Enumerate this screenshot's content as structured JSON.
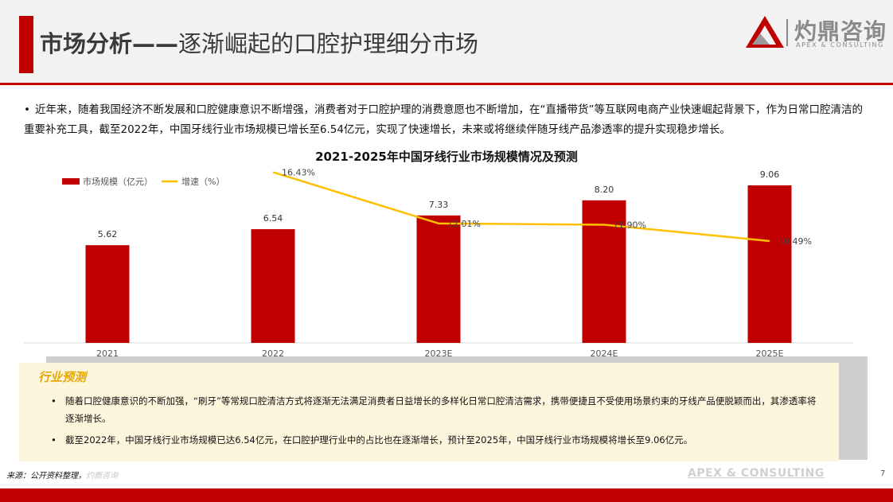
{
  "header": {
    "title_bold": "市场分析——",
    "title_rest": "逐渐崛起的口腔护理细分市场",
    "logo_cn": "灼鼎咨询",
    "logo_en": "APEX & CONSULTING"
  },
  "intro": {
    "bullet": "•",
    "text": "近年来，随着我国经济不断发展和口腔健康意识不断增强，消费者对于口腔护理的消费意愿也不断增加，在“直播带货”等互联网电商产业快速崛起背景下，作为日常口腔清洁的重要补充工具，截至2022年，中国牙线行业市场规模已增长至6.54亿元，实现了快速增长，未来或将继续伴随牙线产品渗透率的提升实现稳步增长。"
  },
  "chart_data": {
    "type": "bar",
    "title": "2021-2025年中国牙线行业市场规模情况及预测",
    "categories": [
      "2021",
      "2022",
      "2023E",
      "2024E",
      "2025E"
    ],
    "series": [
      {
        "name": "市场规模（亿元）",
        "type": "bar",
        "values": [
          5.62,
          6.54,
          7.33,
          8.2,
          9.06
        ],
        "labels": [
          "5.62",
          "6.54",
          "7.33",
          "8.20",
          "9.06"
        ],
        "color": "#c00000"
      },
      {
        "name": "增速（%）",
        "type": "line",
        "values": [
          null,
          16.43,
          12.01,
          11.9,
          10.49
        ],
        "labels": [
          "",
          "16.43%",
          "12.01%",
          "11.90%",
          "10.49%"
        ],
        "color": "#ffc000"
      }
    ],
    "legend": "top-left",
    "grid": false
  },
  "prediction": {
    "title": "行业预测",
    "items": [
      {
        "bullet": "•",
        "text": "随着口腔健康意识的不断加强，“刷牙”等常规口腔清洁方式将逐渐无法满足消费者日益增长的多样化日常口腔清洁需求，携带便捷且不受使用场景约束的牙线产品便脱颖而出，其渗透率将逐渐增长。"
      },
      {
        "bullet": "•",
        "text": "截至2022年，中国牙线行业市场规模已达6.54亿元，在口腔护理行业中的占比也在逐渐增长，预计至2025年，中国牙线行业市场规模将增长至9.06亿元。"
      }
    ]
  },
  "footer": {
    "source_label": "来源：公开资料整理，",
    "source_watermark": "灼鼎咨询",
    "brand": "APEX & CONSULTING",
    "page": "7"
  },
  "colors": {
    "accent": "#c00000",
    "line": "#ffc000",
    "prediction_title": "#e6a800",
    "prediction_bg": "#fdf6dc"
  },
  "icons": {
    "bullet": "bullet-dot-icon",
    "logo": "triangle-logo-icon"
  }
}
